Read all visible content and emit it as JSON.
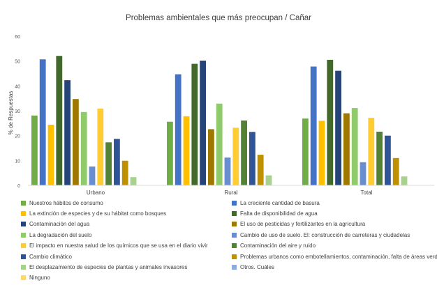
{
  "chart_data": {
    "type": "bar",
    "title": "Problemas ambientales que más preocupan / Cañar",
    "xlabel": "",
    "ylabel": "% de Respuestas",
    "ylim": [
      0,
      60
    ],
    "yticks": [
      0,
      10,
      20,
      30,
      40,
      50,
      60
    ],
    "grid": false,
    "legend_position": "bottom",
    "categories": [
      "Urbano",
      "Rural",
      "Total"
    ],
    "series": [
      {
        "name": "Nuestros hábitos de consumo",
        "color": "#70AD47",
        "values": [
          28.1,
          25.6,
          26.9
        ]
      },
      {
        "name": "La creciente cantidad de basura",
        "color": "#4472C4",
        "values": [
          50.7,
          44.7,
          47.8
        ]
      },
      {
        "name": "La extinción de especies y de su hábitat como bosques",
        "color": "#FFC000",
        "values": [
          24.4,
          27.8,
          26.0
        ]
      },
      {
        "name": "Falta de disponibilidad de agua",
        "color": "#43682B",
        "values": [
          52.1,
          48.9,
          50.5
        ]
      },
      {
        "name": "Contaminación del agua",
        "color": "#264478",
        "values": [
          42.3,
          50.2,
          46.1
        ]
      },
      {
        "name": "El uso de pesticidas y fertilizantes en la agricultura",
        "color": "#9E7800",
        "values": [
          34.7,
          22.6,
          29.0
        ]
      },
      {
        "name": "La degradación del suelo",
        "color": "#8FCA6B",
        "values": [
          29.5,
          32.9,
          31.1
        ]
      },
      {
        "name": "Cambio de uso de suelo. El: construcción de carreteras y ciudadelas",
        "color": "#698ED0",
        "values": [
          7.6,
          11.2,
          9.3
        ]
      },
      {
        "name": "El impacto en nuestra salud de los químicos que se usa en el diario vivir",
        "color": "#FFCD33",
        "values": [
          30.9,
          23.2,
          27.2
        ]
      },
      {
        "name": "Contaminación del aire y ruido",
        "color": "#548235",
        "values": [
          17.3,
          26.1,
          21.6
        ]
      },
      {
        "name": "Cambio climático",
        "color": "#2F5597",
        "values": [
          18.7,
          21.5,
          20.0
        ]
      },
      {
        "name": "Problemas urbanos como embotellamientos, contaminación, falta de áreas verdes",
        "color": "#BF9000",
        "values": [
          9.9,
          12.3,
          11.0
        ]
      },
      {
        "name": "El desplazamiento de especies de plantas y animales invasores",
        "color": "#A9D18E",
        "values": [
          3.3,
          4.0,
          3.6
        ]
      },
      {
        "name": "Otros. Cuáles",
        "color": "#8FAADC",
        "values": [
          0,
          0,
          0
        ]
      },
      {
        "name": "Ninguno",
        "color": "#FFD966",
        "values": [
          0,
          0,
          0
        ]
      }
    ]
  }
}
